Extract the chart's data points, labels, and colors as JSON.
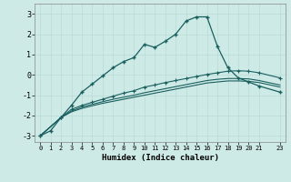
{
  "xlabel": "Humidex (Indice chaleur)",
  "background_color": "#ceeae6",
  "grid_color": "#b8dbd6",
  "line_color": "#1a5f5f",
  "xlim": [
    -0.5,
    23.5
  ],
  "ylim": [
    -3.3,
    3.5
  ],
  "yticks": [
    -3,
    -2,
    -1,
    0,
    1,
    2,
    3
  ],
  "xticks": [
    0,
    1,
    2,
    3,
    4,
    5,
    6,
    7,
    8,
    9,
    10,
    11,
    12,
    13,
    14,
    15,
    16,
    17,
    18,
    19,
    20,
    21,
    23
  ],
  "line1_x": [
    0,
    1,
    2,
    3,
    4,
    5,
    6,
    7,
    8,
    9,
    10,
    11,
    12,
    13,
    14,
    15,
    16,
    17,
    18,
    19,
    20,
    21,
    23
  ],
  "line1_y": [
    -3.0,
    -2.75,
    -2.1,
    -1.5,
    -0.85,
    -0.45,
    -0.05,
    0.35,
    0.65,
    0.85,
    1.5,
    1.35,
    1.65,
    2.0,
    2.65,
    2.85,
    2.85,
    1.4,
    0.35,
    -0.15,
    -0.35,
    -0.55,
    -0.85
  ],
  "line2_x": [
    0,
    2,
    3,
    4,
    5,
    6,
    7,
    8,
    9,
    10,
    11,
    12,
    13,
    14,
    15,
    16,
    17,
    18,
    19,
    20,
    21,
    23
  ],
  "line2_y": [
    -3.0,
    -2.1,
    -1.7,
    -1.5,
    -1.35,
    -1.2,
    -1.05,
    -0.9,
    -0.78,
    -0.6,
    -0.5,
    -0.38,
    -0.28,
    -0.18,
    -0.08,
    0.02,
    0.1,
    0.18,
    0.2,
    0.18,
    0.1,
    -0.15
  ],
  "line3_x": [
    0,
    2,
    3,
    4,
    5,
    6,
    7,
    8,
    9,
    10,
    11,
    12,
    13,
    14,
    15,
    16,
    17,
    18,
    19,
    20,
    21,
    23
  ],
  "line3_y": [
    -3.0,
    -2.1,
    -1.78,
    -1.58,
    -1.45,
    -1.32,
    -1.2,
    -1.1,
    -1.0,
    -0.88,
    -0.78,
    -0.68,
    -0.58,
    -0.48,
    -0.38,
    -0.28,
    -0.22,
    -0.18,
    -0.18,
    -0.2,
    -0.28,
    -0.5
  ],
  "line4_x": [
    0,
    2,
    3,
    4,
    5,
    6,
    7,
    8,
    9,
    10,
    11,
    12,
    13,
    14,
    15,
    16,
    17,
    18,
    19,
    20,
    21,
    23
  ],
  "line4_y": [
    -3.0,
    -2.1,
    -1.82,
    -1.65,
    -1.52,
    -1.4,
    -1.3,
    -1.2,
    -1.1,
    -1.0,
    -0.9,
    -0.8,
    -0.7,
    -0.6,
    -0.5,
    -0.4,
    -0.35,
    -0.3,
    -0.3,
    -0.32,
    -0.38,
    -0.6
  ]
}
